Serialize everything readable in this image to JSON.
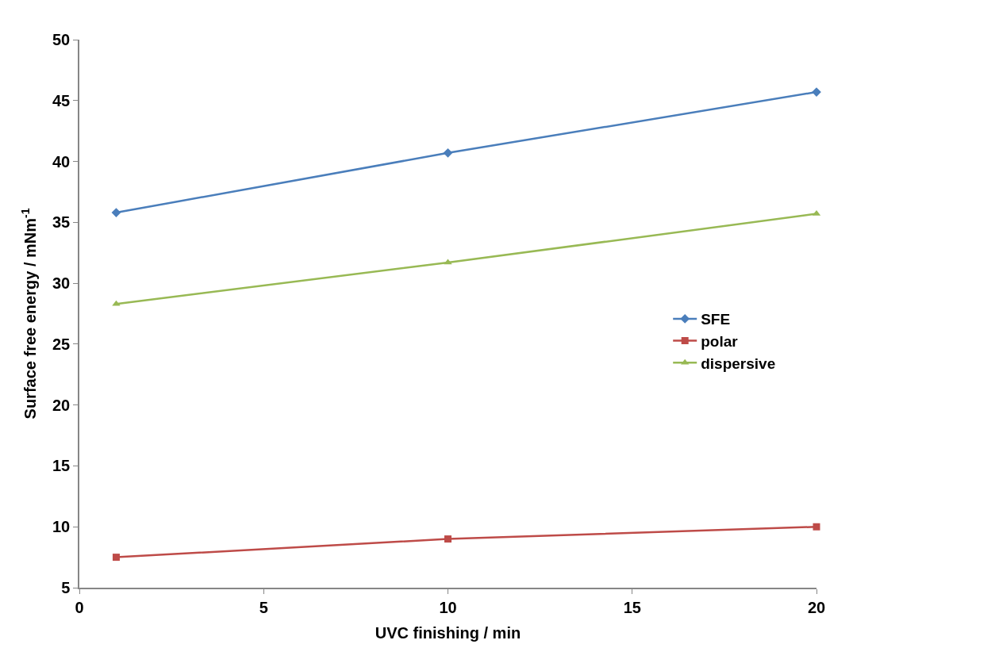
{
  "chart_data": {
    "type": "line",
    "xlabel": "UVC finishing / min",
    "ylabel": "Surface free energy / mNm$^{-1}$",
    "x": [
      1,
      10,
      20
    ],
    "series": [
      {
        "name": "SFE",
        "color": "#4a7ebb",
        "values": [
          35.8,
          40.7,
          45.7
        ],
        "marker": "diamond"
      },
      {
        "name": "polar",
        "color": "#be4b48",
        "values": [
          7.5,
          9.0,
          10.0
        ],
        "marker": "square"
      },
      {
        "name": "dispersive",
        "color": "#98b954",
        "values": [
          28.3,
          31.7,
          35.7
        ],
        "marker": "triangle"
      }
    ],
    "xlim": [
      0,
      20
    ],
    "xticks": [
      0,
      5,
      10,
      15,
      20
    ],
    "ylim": [
      5,
      50
    ],
    "yticks": [
      5,
      10,
      15,
      20,
      25,
      30,
      35,
      40,
      45,
      50
    ],
    "legend": "right",
    "line_style": "solid"
  }
}
